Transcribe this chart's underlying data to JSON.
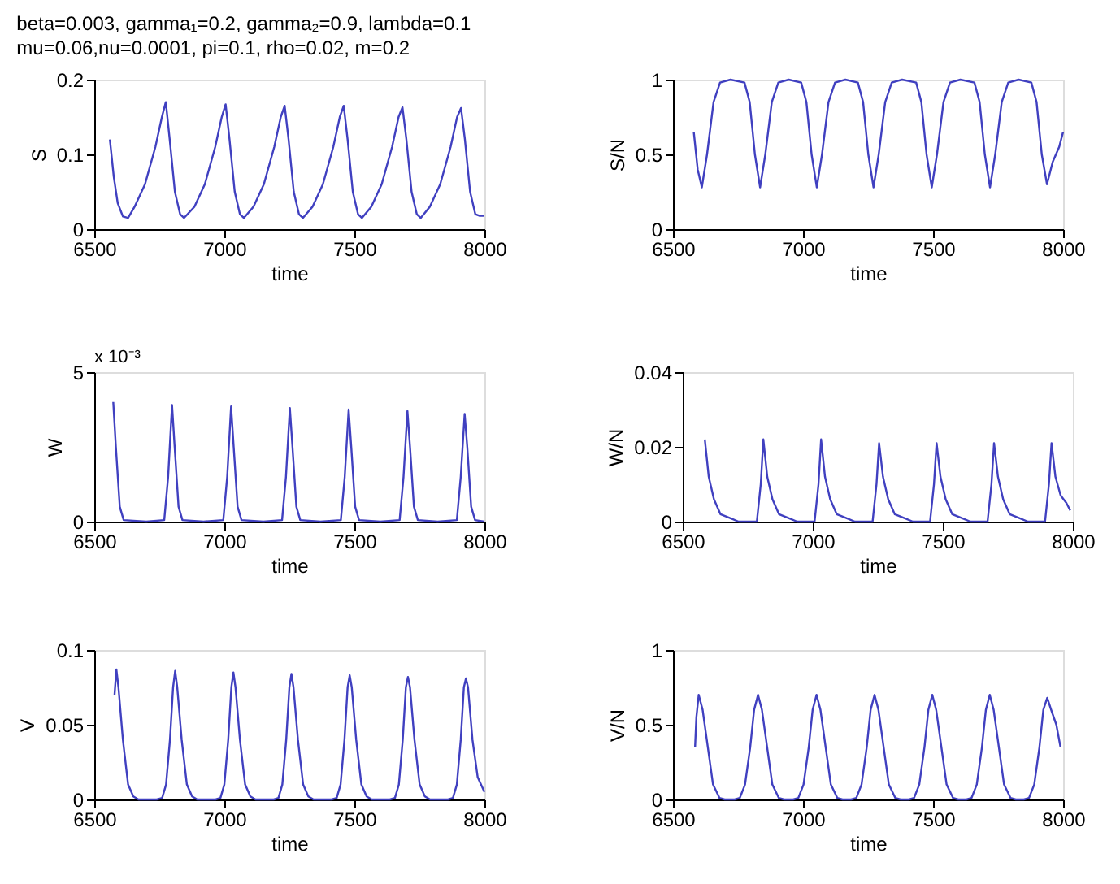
{
  "chart_data": [
    {
      "type": "line",
      "title": "beta=0.003, gamma₁=0.2, gamma₂=0.9, lambda=0.1",
      "subtitle": "mu=0.06,nu=0.0001, pi=0.1, rho=0.02, m=0.2",
      "xlabel": "time",
      "ylabel": "S",
      "xlim": [
        6500,
        8000
      ],
      "xticks": [
        6500,
        7000,
        7500,
        8000
      ],
      "ylim": [
        0,
        0.2
      ],
      "yticks": [
        0,
        0.1,
        0.2
      ],
      "grid": false,
      "series": [
        {
          "color": "#4040c0",
          "x": [
            6560,
            6575,
            6590,
            6610,
            6630,
            6655,
            6695,
            6735,
            6760,
            6775,
            6790,
            6810,
            6830,
            6845,
            6885,
            6925,
            6965,
            6990,
            7005,
            7020,
            7040,
            7060,
            7075,
            7112,
            7152,
            7192,
            7217,
            7232,
            7247,
            7267,
            7287,
            7302,
            7339,
            7379,
            7419,
            7444,
            7459,
            7474,
            7494,
            7514,
            7529,
            7565,
            7605,
            7645,
            7670,
            7685,
            7700,
            7720,
            7740,
            7755,
            7790,
            7830,
            7870,
            7895,
            7910,
            7925,
            7945,
            7965,
            7980,
            8000
          ],
          "values": [
            0.12,
            0.07,
            0.035,
            0.017,
            0.015,
            0.03,
            0.06,
            0.11,
            0.15,
            0.17,
            0.12,
            0.05,
            0.02,
            0.015,
            0.03,
            0.06,
            0.11,
            0.15,
            0.167,
            0.12,
            0.05,
            0.02,
            0.015,
            0.03,
            0.06,
            0.11,
            0.15,
            0.165,
            0.12,
            0.05,
            0.02,
            0.015,
            0.03,
            0.06,
            0.11,
            0.15,
            0.165,
            0.12,
            0.05,
            0.02,
            0.015,
            0.03,
            0.06,
            0.11,
            0.15,
            0.163,
            0.12,
            0.05,
            0.02,
            0.015,
            0.03,
            0.06,
            0.11,
            0.15,
            0.162,
            0.12,
            0.05,
            0.02,
            0.018,
            0.018
          ]
        }
      ]
    },
    {
      "type": "line",
      "xlabel": "time",
      "ylabel": "S/N",
      "xlim": [
        6500,
        8000
      ],
      "xticks": [
        6500,
        7000,
        7500,
        8000
      ],
      "ylim": [
        0,
        1
      ],
      "yticks": [
        0,
        0.5,
        1
      ],
      "grid": false,
      "series": [
        {
          "color": "#4040c0",
          "x": [
            6580,
            6595,
            6611,
            6631,
            6656,
            6681,
            6721,
            6775,
            6795,
            6815,
            6835,
            6855,
            6880,
            6905,
            6945,
            6993,
            7013,
            7033,
            7053,
            7073,
            7098,
            7123,
            7163,
            7211,
            7231,
            7251,
            7271,
            7291,
            7316,
            7341,
            7381,
            7435,
            7455,
            7475,
            7495,
            7515,
            7540,
            7565,
            7605,
            7659,
            7679,
            7699,
            7719,
            7739,
            7764,
            7789,
            7829,
            7878,
            7898,
            7918,
            7938,
            7960,
            7985,
            8000
          ],
          "values": [
            0.65,
            0.4,
            0.28,
            0.5,
            0.85,
            0.98,
            1.0,
            0.98,
            0.85,
            0.5,
            0.28,
            0.5,
            0.85,
            0.98,
            1.0,
            0.98,
            0.85,
            0.5,
            0.28,
            0.5,
            0.85,
            0.98,
            1.0,
            0.98,
            0.85,
            0.5,
            0.28,
            0.5,
            0.85,
            0.98,
            1.0,
            0.98,
            0.85,
            0.5,
            0.28,
            0.5,
            0.85,
            0.98,
            1.0,
            0.98,
            0.85,
            0.5,
            0.28,
            0.5,
            0.85,
            0.98,
            1.0,
            0.98,
            0.85,
            0.5,
            0.3,
            0.45,
            0.55,
            0.65
          ]
        }
      ]
    },
    {
      "type": "line",
      "xlabel": "time",
      "ylabel": "W",
      "annotations": [
        "x 10⁻³"
      ],
      "xlim": [
        6500,
        8000
      ],
      "xticks": [
        6500,
        7000,
        7500,
        8000
      ],
      "ylim": [
        0,
        5
      ],
      "yticks": [
        0,
        5
      ],
      "grid": false,
      "series": [
        {
          "color": "#4040c0",
          "x": [
            6573,
            6583,
            6598,
            6613,
            6700,
            6769,
            6784,
            6799,
            6809,
            6824,
            6839,
            6920,
            6996,
            7011,
            7026,
            7036,
            7051,
            7066,
            7150,
            7222,
            7237,
            7252,
            7262,
            7277,
            7292,
            7370,
            7448,
            7463,
            7478,
            7488,
            7503,
            7518,
            7600,
            7674,
            7689,
            7704,
            7714,
            7729,
            7744,
            7820,
            7894,
            7909,
            7924,
            7934,
            7949,
            7964,
            8000
          ],
          "values": [
            4.0,
            2.5,
            0.5,
            0.05,
            0,
            0.05,
            1.5,
            3.9,
            2.5,
            0.5,
            0.05,
            0,
            0.05,
            1.5,
            3.85,
            2.5,
            0.5,
            0.05,
            0,
            0.05,
            1.5,
            3.8,
            2.5,
            0.5,
            0.05,
            0,
            0.05,
            1.5,
            3.75,
            2.5,
            0.5,
            0.05,
            0,
            0.05,
            1.5,
            3.7,
            2.5,
            0.5,
            0.05,
            0,
            0.05,
            1.5,
            3.6,
            2.5,
            0.5,
            0.05,
            0
          ]
        }
      ]
    },
    {
      "type": "line",
      "xlabel": "time",
      "ylabel": "W/N",
      "xlim": [
        6500,
        8000
      ],
      "xticks": [
        6500,
        7000,
        7500,
        8000
      ],
      "ylim": [
        0,
        0.04
      ],
      "yticks": [
        0,
        0.02,
        0.04
      ],
      "grid": false,
      "series": [
        {
          "color": "#4040c0",
          "x": [
            6585,
            6600,
            6620,
            6645,
            6680,
            6715,
            6785,
            6800,
            6810,
            6825,
            6845,
            6870,
            6905,
            6940,
            7007,
            7022,
            7032,
            7047,
            7067,
            7092,
            7127,
            7162,
            7230,
            7245,
            7255,
            7270,
            7290,
            7315,
            7350,
            7385,
            7451,
            7466,
            7476,
            7491,
            7511,
            7536,
            7571,
            7606,
            7672,
            7687,
            7697,
            7712,
            7732,
            7757,
            7792,
            7827,
            7893,
            7908,
            7918,
            7933,
            7953,
            7975,
            7990
          ],
          "values": [
            0.022,
            0.012,
            0.006,
            0.002,
            0.001,
            0,
            0,
            0.01,
            0.022,
            0.012,
            0.006,
            0.002,
            0.001,
            0,
            0,
            0.01,
            0.022,
            0.012,
            0.006,
            0.002,
            0.001,
            0,
            0,
            0.01,
            0.021,
            0.012,
            0.006,
            0.002,
            0.001,
            0,
            0,
            0.01,
            0.021,
            0.012,
            0.006,
            0.002,
            0.001,
            0,
            0,
            0.01,
            0.021,
            0.012,
            0.006,
            0.002,
            0.001,
            0,
            0,
            0.01,
            0.021,
            0.012,
            0.007,
            0.005,
            0.003
          ]
        }
      ]
    },
    {
      "type": "line",
      "xlabel": "time",
      "ylabel": "V",
      "xlim": [
        6500,
        8000
      ],
      "xticks": [
        6500,
        7000,
        7500,
        8000
      ],
      "ylim": [
        0,
        0.1
      ],
      "yticks": [
        0,
        0.05,
        0.1
      ],
      "grid": false,
      "series": [
        {
          "color": "#4040c0",
          "x": [
            6578,
            6585,
            6593,
            6610,
            6630,
            6650,
            6670,
            6740,
            6761,
            6776,
            6791,
            6803,
            6811,
            6819,
            6836,
            6856,
            6876,
            6896,
            6966,
            6985,
            7000,
            7015,
            7027,
            7035,
            7043,
            7060,
            7080,
            7100,
            7120,
            7190,
            7208,
            7223,
            7238,
            7250,
            7258,
            7266,
            7283,
            7303,
            7323,
            7343,
            7412,
            7432,
            7447,
            7462,
            7474,
            7482,
            7490,
            7507,
            7527,
            7547,
            7567,
            7636,
            7656,
            7671,
            7686,
            7698,
            7706,
            7714,
            7731,
            7751,
            7771,
            7791,
            7860,
            7879,
            7894,
            7909,
            7921,
            7929,
            7937,
            7954,
            7974,
            8000
          ],
          "values": [
            0.07,
            0.087,
            0.075,
            0.04,
            0.01,
            0.002,
            0,
            0,
            0.001,
            0.01,
            0.04,
            0.075,
            0.086,
            0.075,
            0.04,
            0.01,
            0.002,
            0,
            0,
            0.001,
            0.01,
            0.04,
            0.075,
            0.085,
            0.075,
            0.04,
            0.01,
            0.002,
            0,
            0,
            0.001,
            0.01,
            0.04,
            0.075,
            0.084,
            0.075,
            0.04,
            0.01,
            0.002,
            0,
            0,
            0.001,
            0.01,
            0.04,
            0.075,
            0.083,
            0.075,
            0.04,
            0.01,
            0.002,
            0,
            0,
            0.001,
            0.01,
            0.04,
            0.075,
            0.082,
            0.075,
            0.04,
            0.01,
            0.002,
            0,
            0,
            0.001,
            0.01,
            0.04,
            0.075,
            0.081,
            0.075,
            0.04,
            0.015,
            0.005
          ]
        }
      ]
    },
    {
      "type": "line",
      "xlabel": "time",
      "ylabel": "V/N",
      "xlim": [
        6500,
        8000
      ],
      "xticks": [
        6500,
        7000,
        7500,
        8000
      ],
      "ylim": [
        0,
        1
      ],
      "yticks": [
        0,
        0.5,
        1
      ],
      "grid": false,
      "series": [
        {
          "color": "#4040c0",
          "x": [
            6585,
            6590,
            6599,
            6614,
            6634,
            6654,
            6679,
            6699,
            6737,
            6757,
            6777,
            6797,
            6812,
            6827,
            6842,
            6862,
            6882,
            6907,
            6927,
            6962,
            6982,
            7002,
            7022,
            7037,
            7052,
            7067,
            7087,
            7107,
            7132,
            7152,
            7185,
            7205,
            7225,
            7245,
            7260,
            7275,
            7290,
            7310,
            7330,
            7355,
            7375,
            7407,
            7427,
            7447,
            7467,
            7482,
            7497,
            7512,
            7532,
            7552,
            7577,
            7597,
            7628,
            7648,
            7668,
            7688,
            7703,
            7718,
            7733,
            7753,
            7773,
            7798,
            7818,
            7849,
            7869,
            7889,
            7909,
            7924,
            7939,
            7954,
            7974,
            7990
          ],
          "values": [
            0.35,
            0.55,
            0.7,
            0.6,
            0.35,
            0.1,
            0.01,
            0,
            0,
            0.01,
            0.1,
            0.35,
            0.6,
            0.7,
            0.6,
            0.35,
            0.1,
            0.01,
            0,
            0,
            0.01,
            0.1,
            0.35,
            0.6,
            0.7,
            0.6,
            0.35,
            0.1,
            0.01,
            0,
            0,
            0.01,
            0.1,
            0.35,
            0.6,
            0.7,
            0.6,
            0.35,
            0.1,
            0.01,
            0,
            0,
            0.01,
            0.1,
            0.35,
            0.6,
            0.7,
            0.6,
            0.35,
            0.1,
            0.01,
            0,
            0,
            0.01,
            0.1,
            0.35,
            0.6,
            0.7,
            0.6,
            0.35,
            0.1,
            0.01,
            0,
            0,
            0.01,
            0.1,
            0.35,
            0.6,
            0.68,
            0.6,
            0.5,
            0.35
          ]
        }
      ]
    }
  ]
}
